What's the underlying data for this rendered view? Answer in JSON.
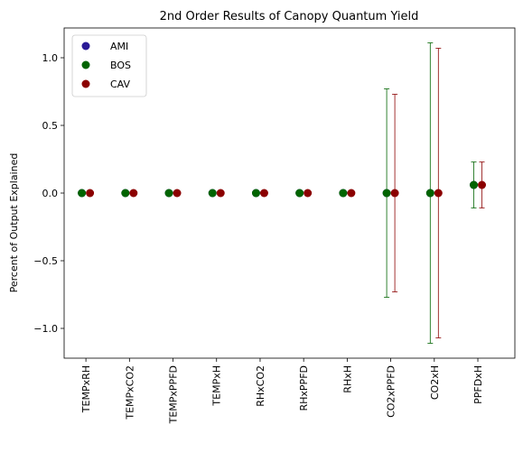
{
  "chart_data": {
    "type": "scatter",
    "title": "2nd Order Results of Canopy Quantum Yield",
    "xlabel": "",
    "ylabel": "Percent of Output Explained",
    "categories": [
      "TEMPxRH",
      "TEMPxCO2",
      "TEMPxPPFD",
      "TEMPxH",
      "RHxCO2",
      "RHxPPFD",
      "RHxH",
      "CO2xPPFD",
      "CO2xH",
      "PPFDxH"
    ],
    "ylim": [
      -1.22,
      1.22
    ],
    "yticks": [
      -1.0,
      -0.5,
      0.0,
      0.5,
      1.0
    ],
    "ytick_labels": [
      "−1.0",
      "−0.5",
      "0.0",
      "0.5",
      "1.0"
    ],
    "grid": false,
    "legend_position": "top-left",
    "series": [
      {
        "name": "AMI",
        "color": "#2a1a96",
        "values": [
          0.0,
          0.0,
          0.0,
          0.0,
          0.0,
          0.0,
          0.0,
          0.0,
          0.0,
          0.06
        ],
        "errors": [
          0,
          0,
          0,
          0,
          0,
          0,
          0,
          0,
          0,
          0
        ]
      },
      {
        "name": "BOS",
        "color": "#006400",
        "values": [
          0.0,
          0.0,
          0.0,
          0.0,
          0.0,
          0.0,
          0.0,
          0.0,
          0.0,
          0.06
        ],
        "errors": [
          0,
          0,
          0,
          0,
          0,
          0,
          0,
          0.77,
          1.11,
          0.17
        ]
      },
      {
        "name": "CAV",
        "color": "#8b0000",
        "values": [
          0.0,
          0.0,
          0.0,
          0.0,
          0.0,
          0.0,
          0.0,
          0.0,
          0.0,
          0.06
        ],
        "errors": [
          0,
          0,
          0,
          0,
          0,
          0,
          0,
          0.73,
          1.07,
          0.17
        ]
      }
    ]
  }
}
